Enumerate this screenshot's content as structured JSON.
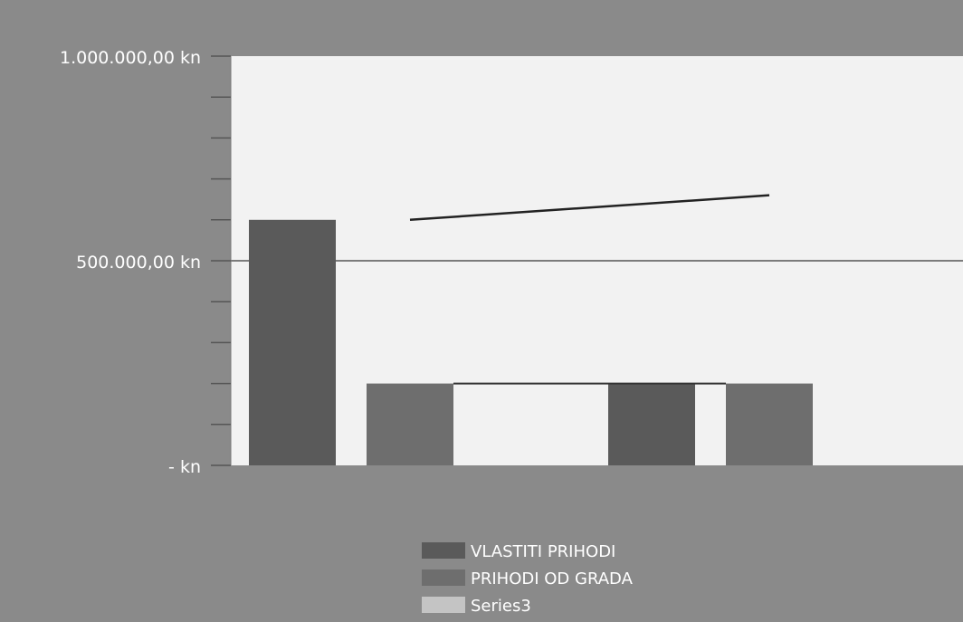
{
  "chart_data": {
    "type": "bar",
    "title": "",
    "xlabel": "",
    "ylabel": "",
    "ylim": [
      0,
      1000000
    ],
    "y_ticks": [
      {
        "value": 1000000,
        "label": "1.000.000,00 kn"
      },
      {
        "value": 500000,
        "label": "500.000,00 kn"
      },
      {
        "value": 0,
        "label": "-   kn"
      }
    ],
    "minor_tick_step": 100000,
    "grid": "gridline at 500.000,00 kn",
    "legend_position": "bottom",
    "series": [
      {
        "name": "VLASTITI PRIHODI",
        "color": "#5a5a5a",
        "values": [
          600000,
          200000
        ]
      },
      {
        "name": "PRIHODI OD GRADA",
        "color": "#6e6e6e",
        "values": [
          200000,
          200000
        ]
      },
      {
        "name": "Series3",
        "color": "#c4c4c4",
        "values": [
          null,
          null
        ]
      }
    ],
    "line": {
      "color": "#222222",
      "values": [
        600000,
        660000
      ]
    },
    "colors": {
      "background": "#8a8a8a",
      "plot_area": "#f2f2f2",
      "text": "#ffffff"
    }
  }
}
